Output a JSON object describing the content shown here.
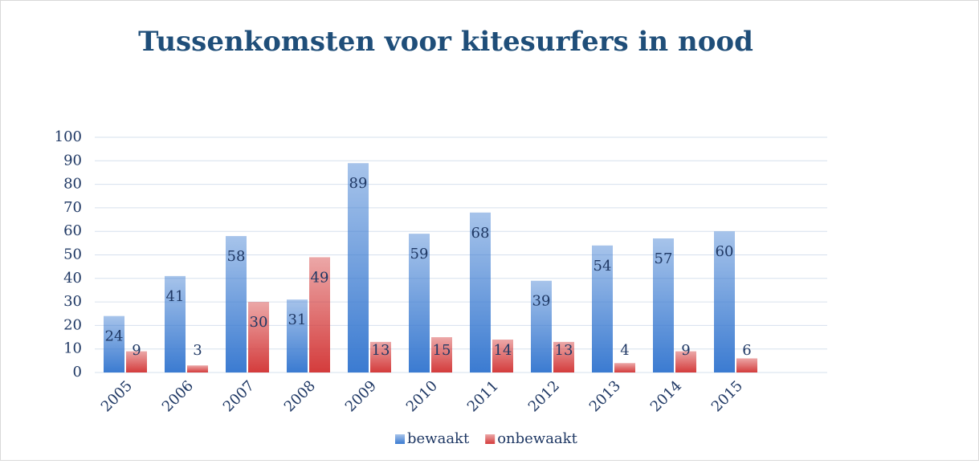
{
  "chart_data": {
    "type": "bar",
    "title": "Tussenkomsten voor kitesurfers in nood",
    "categories": [
      "2005",
      "2006",
      "2007",
      "2008",
      "2009",
      "2010",
      "2011",
      "2012",
      "2013",
      "2014",
      "2015",
      null
    ],
    "series": [
      {
        "name": "bewaakt",
        "color": "#3b7bd1",
        "values": [
          24,
          41,
          58,
          31,
          89,
          59,
          68,
          39,
          54,
          57,
          60,
          null
        ]
      },
      {
        "name": "onbewaakt",
        "color": "#d43c3c",
        "values": [
          9,
          3,
          30,
          49,
          13,
          15,
          14,
          13,
          4,
          9,
          6,
          null
        ]
      }
    ],
    "ylim": [
      0,
      100
    ],
    "yticks": [
      0,
      10,
      20,
      30,
      40,
      50,
      60,
      70,
      80,
      90,
      100
    ],
    "grid": true,
    "legend": "bottom"
  }
}
